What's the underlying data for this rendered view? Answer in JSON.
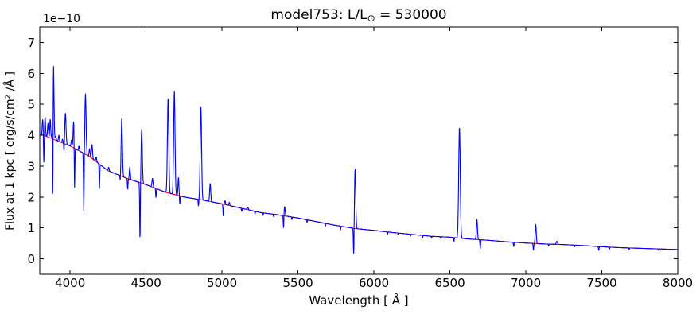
{
  "chart_data": {
    "type": "line",
    "title": "model753: L/L⊙ = 530000",
    "title_parts": [
      "model753: L/L",
      "⊙",
      " = 530000"
    ],
    "xlabel": "Wavelength [ Å ]",
    "ylabel": "Flux at 1 kpc [ erg/s/cm² /Å ]",
    "y_offset_text": "1e−10",
    "y_scale_factor": "1e-10",
    "xlim": [
      3800,
      8000
    ],
    "ylim": [
      -0.5,
      7.5
    ],
    "xticks": [
      4000,
      4500,
      5000,
      5500,
      6000,
      6500,
      7000,
      7500,
      8000
    ],
    "yticks": [
      0,
      1,
      2,
      3,
      4,
      5,
      6,
      7
    ],
    "grid": false,
    "legend": null,
    "background_color": "#ffffff",
    "axes_color": "#000000",
    "series": [
      {
        "name": "model spectrum",
        "color": "#0000ff",
        "composition": "continuum_plus_lines"
      },
      {
        "name": "smooth continuum",
        "color": "#ff0000",
        "composition": "continuum_only"
      }
    ],
    "continuum_points_format": "[wavelength_A, flux_1e-10_erg/s/cm2/A]",
    "continuum_points": [
      [
        3800,
        4.05
      ],
      [
        3900,
        3.85
      ],
      [
        4000,
        3.65
      ],
      [
        4125,
        3.32
      ],
      [
        4250,
        2.85
      ],
      [
        4375,
        2.6
      ],
      [
        4500,
        2.4
      ],
      [
        4625,
        2.16
      ],
      [
        4750,
        2.0
      ],
      [
        4875,
        1.9
      ],
      [
        5000,
        1.78
      ],
      [
        5125,
        1.64
      ],
      [
        5250,
        1.5
      ],
      [
        5375,
        1.42
      ],
      [
        5500,
        1.32
      ],
      [
        5625,
        1.2
      ],
      [
        5750,
        1.08
      ],
      [
        5875,
        0.98
      ],
      [
        6000,
        0.92
      ],
      [
        6125,
        0.85
      ],
      [
        6250,
        0.79
      ],
      [
        6375,
        0.73
      ],
      [
        6500,
        0.7
      ],
      [
        6625,
        0.64
      ],
      [
        6750,
        0.6
      ],
      [
        6875,
        0.55
      ],
      [
        7000,
        0.51
      ],
      [
        7125,
        0.48
      ],
      [
        7250,
        0.46
      ],
      [
        7375,
        0.43
      ],
      [
        7500,
        0.39
      ],
      [
        7625,
        0.36
      ],
      [
        7750,
        0.34
      ],
      [
        7875,
        0.32
      ],
      [
        8000,
        0.3
      ]
    ],
    "emission_lines_format": "[center_wavelength_A, peak_height_above_continuum_1e-10, sigma_A]",
    "emission_lines": [
      [
        3819,
        0.5,
        3
      ],
      [
        3835,
        0.6,
        3
      ],
      [
        3854,
        0.45,
        3
      ],
      [
        3869,
        0.6,
        3
      ],
      [
        3889,
        3.0,
        4
      ],
      [
        3905,
        0.12,
        3
      ],
      [
        3926,
        0.2,
        3
      ],
      [
        3950,
        0.12,
        3
      ],
      [
        3969,
        1.0,
        4
      ],
      [
        4009,
        0.22,
        3
      ],
      [
        4023,
        0.85,
        3.5
      ],
      [
        4058,
        0.15,
        3
      ],
      [
        4101,
        1.95,
        4
      ],
      [
        4128,
        0.25,
        3
      ],
      [
        4144,
        0.45,
        3.5
      ],
      [
        4172,
        0.15,
        3
      ],
      [
        4254,
        0.12,
        3
      ],
      [
        4340,
        1.88,
        4
      ],
      [
        4393,
        0.4,
        3
      ],
      [
        4471,
        1.75,
        4
      ],
      [
        4542,
        0.28,
        3.5
      ],
      [
        4645,
        3.06,
        4.5
      ],
      [
        4686,
        3.34,
        4.5
      ],
      [
        4713,
        0.58,
        3
      ],
      [
        4861,
        3.0,
        4.5
      ],
      [
        4922,
        0.58,
        3.5
      ],
      [
        5020,
        0.12,
        3
      ],
      [
        5048,
        0.1,
        3
      ],
      [
        5170,
        0.08,
        3
      ],
      [
        5412,
        0.3,
        3.5
      ],
      [
        5876,
        1.92,
        4
      ],
      [
        6563,
        3.58,
        5
      ],
      [
        6678,
        0.66,
        3.5
      ],
      [
        7065,
        0.62,
        3.5
      ],
      [
        7204,
        0.1,
        4
      ]
    ],
    "absorption_lines_format": "[center_wavelength_A, depth_below_continuum_1e-10, sigma_A]",
    "absorption_lines": [
      [
        3827,
        0.92,
        2
      ],
      [
        3886,
        3.9,
        2.2
      ],
      [
        3960,
        0.3,
        2
      ],
      [
        4029,
        1.46,
        2
      ],
      [
        4090,
        1.9,
        2.2
      ],
      [
        4193,
        0.8,
        2
      ],
      [
        4330,
        0.2,
        2
      ],
      [
        4379,
        0.35,
        2
      ],
      [
        4460,
        1.85,
        2.2
      ],
      [
        4565,
        0.3,
        2
      ],
      [
        4722,
        0.26,
        2
      ],
      [
        4845,
        0.22,
        2
      ],
      [
        5008,
        0.38,
        2
      ],
      [
        5130,
        0.1,
        2
      ],
      [
        5217,
        0.09,
        2
      ],
      [
        5270,
        0.08,
        2
      ],
      [
        5340,
        0.08,
        2
      ],
      [
        5405,
        0.43,
        2
      ],
      [
        5460,
        0.08,
        2
      ],
      [
        5560,
        0.08,
        2
      ],
      [
        5680,
        0.1,
        2
      ],
      [
        5780,
        0.12,
        2
      ],
      [
        5867,
        0.95,
        2.2
      ],
      [
        6090,
        0.07,
        2
      ],
      [
        6160,
        0.06,
        2
      ],
      [
        6240,
        0.06,
        2
      ],
      [
        6320,
        0.08,
        2
      ],
      [
        6380,
        0.06,
        2
      ],
      [
        6440,
        0.06,
        2
      ],
      [
        6527,
        0.12,
        2
      ],
      [
        6700,
        0.3,
        2
      ],
      [
        6920,
        0.14,
        2
      ],
      [
        7050,
        0.22,
        2
      ],
      [
        7150,
        0.06,
        2
      ],
      [
        7320,
        0.06,
        2
      ],
      [
        7480,
        0.13,
        2
      ],
      [
        7550,
        0.07,
        2
      ],
      [
        7680,
        0.05,
        2
      ],
      [
        7875,
        0.05,
        2
      ]
    ]
  }
}
